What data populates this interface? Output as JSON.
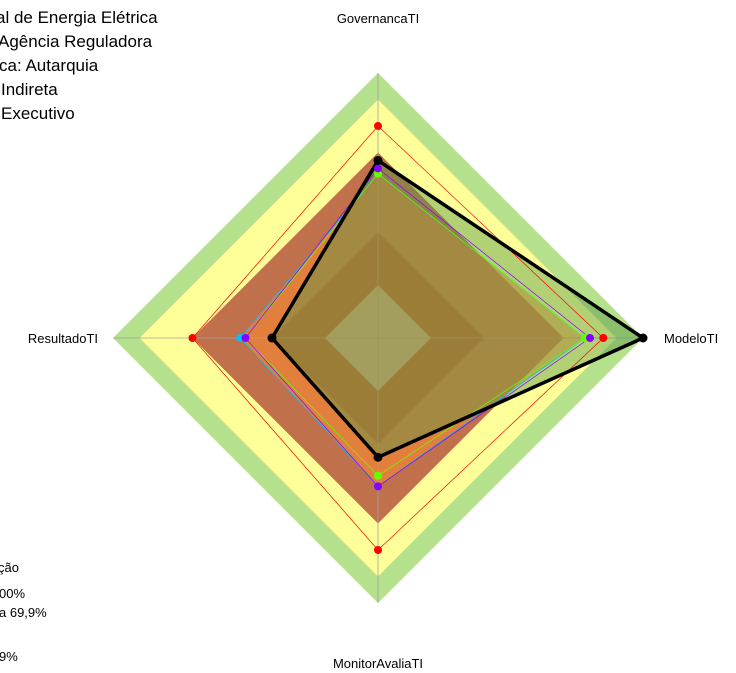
{
  "info_lines": [
    "al de Energia Elétrica",
    "Agência Reguladora",
    "ca: Autarquia",
    "Indireta",
    "Executivo"
  ],
  "legend_lines": [
    "ção",
    "00%",
    "a 69,9%",
    "9%"
  ],
  "chart_data": {
    "type": "radar",
    "axes": [
      "GovernancaTI",
      "ModeloTI",
      "MonitorAvaliaTI",
      "ResultadoTI"
    ],
    "range": [
      0,
      100
    ],
    "bands": [
      {
        "from": 0,
        "to": 20,
        "color": "#c0c0c0"
      },
      {
        "from": 20,
        "to": 40,
        "color": "#a83c28"
      },
      {
        "from": 40,
        "to": 70,
        "color": "#c0704a"
      },
      {
        "from": 70,
        "to": 90,
        "color": "#ffff99"
      },
      {
        "from": 90,
        "to": 100,
        "color": "#b5e08c"
      }
    ],
    "series": [
      {
        "color": "#ff0000",
        "values": [
          80,
          85,
          80,
          70
        ],
        "stroke": 0.7,
        "fill": "none"
      },
      {
        "color": "#00bfff",
        "values": [
          62,
          78,
          56,
          52
        ],
        "stroke": 0.7,
        "fill": "rgba(255,140,50,0.55)"
      },
      {
        "color": "#66ff00",
        "values": [
          62,
          78,
          52,
          50
        ],
        "stroke": 0.7,
        "fill": "none"
      },
      {
        "color": "#8800ff",
        "values": [
          64,
          80,
          56,
          50
        ],
        "stroke": 0.7,
        "fill": "none"
      },
      {
        "color": "#000000",
        "values": [
          67,
          100,
          45,
          40
        ],
        "stroke": 3.5,
        "fill": "rgba(85,150,70,0.45)"
      }
    ]
  }
}
